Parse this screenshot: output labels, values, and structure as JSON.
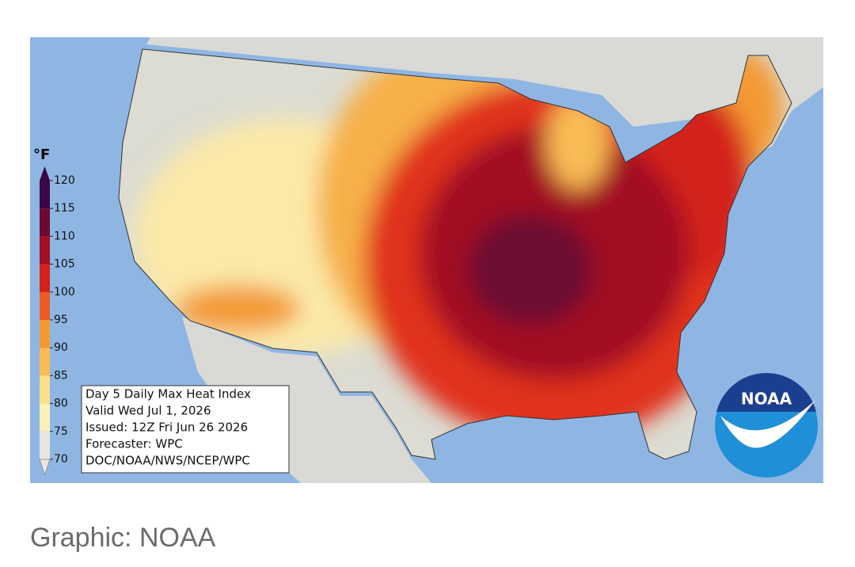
{
  "map": {
    "legend": {
      "unit": "°F",
      "ticks": [
        70,
        75,
        80,
        85,
        90,
        95,
        100,
        105,
        110,
        115,
        120
      ],
      "colors": [
        "#e6e6df",
        "#fbf0b8",
        "#fbdf8c",
        "#f9bb55",
        "#f39a34",
        "#ec5a26",
        "#d3221c",
        "#a21023",
        "#6c0a33",
        "#3a0845"
      ]
    },
    "info": [
      "Day 5 Daily Max Heat Index",
      "Valid Wed Jul 1, 2026",
      "Issued: 12Z Fri Jun 26 2026",
      "Forecaster: WPC",
      "DOC/NOAA/NWS/NCEP/WPC"
    ],
    "logo": "NOAA"
  },
  "caption": "Graphic: NOAA"
}
